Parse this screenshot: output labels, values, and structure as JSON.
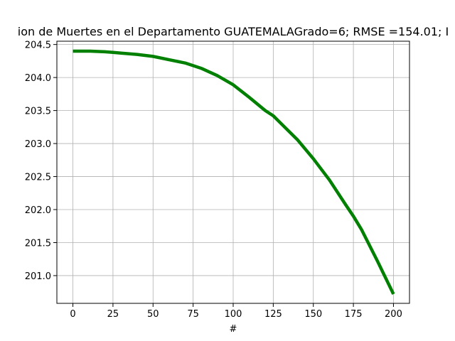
{
  "chart_data": {
    "type": "line",
    "title": "ion de Muertes  en el Departamento  GUATEMALAGrado=6; RMSE =154.01; I",
    "xlabel": "#",
    "ylabel": "",
    "xlim": [
      -10,
      210
    ],
    "ylim": [
      200.58,
      204.55
    ],
    "x_ticks": [
      0,
      25,
      50,
      75,
      100,
      125,
      150,
      175,
      200
    ],
    "x_tick_labels": [
      "0",
      "25",
      "50",
      "75",
      "100",
      "125",
      "150",
      "175",
      "200"
    ],
    "y_ticks": [
      201.0,
      201.5,
      202.0,
      202.5,
      203.0,
      203.5,
      204.0,
      204.5
    ],
    "y_tick_labels": [
      "201.0",
      "201.5",
      "202.0",
      "202.5",
      "203.0",
      "203.5",
      "204.0",
      "204.5"
    ],
    "grid": true,
    "series": [
      {
        "color": "#008000",
        "x": [
          0,
          10,
          20,
          25,
          30,
          40,
          50,
          60,
          70,
          75,
          80,
          90,
          100,
          110,
          120,
          125,
          130,
          140,
          150,
          160,
          170,
          175,
          180,
          190,
          200
        ],
        "y": [
          204.4,
          204.4,
          204.39,
          204.38,
          204.37,
          204.35,
          204.32,
          204.27,
          204.22,
          204.18,
          204.14,
          204.03,
          203.89,
          203.7,
          203.5,
          203.42,
          203.3,
          203.06,
          202.77,
          202.45,
          202.08,
          201.9,
          201.7,
          201.22,
          200.72
        ]
      }
    ]
  }
}
